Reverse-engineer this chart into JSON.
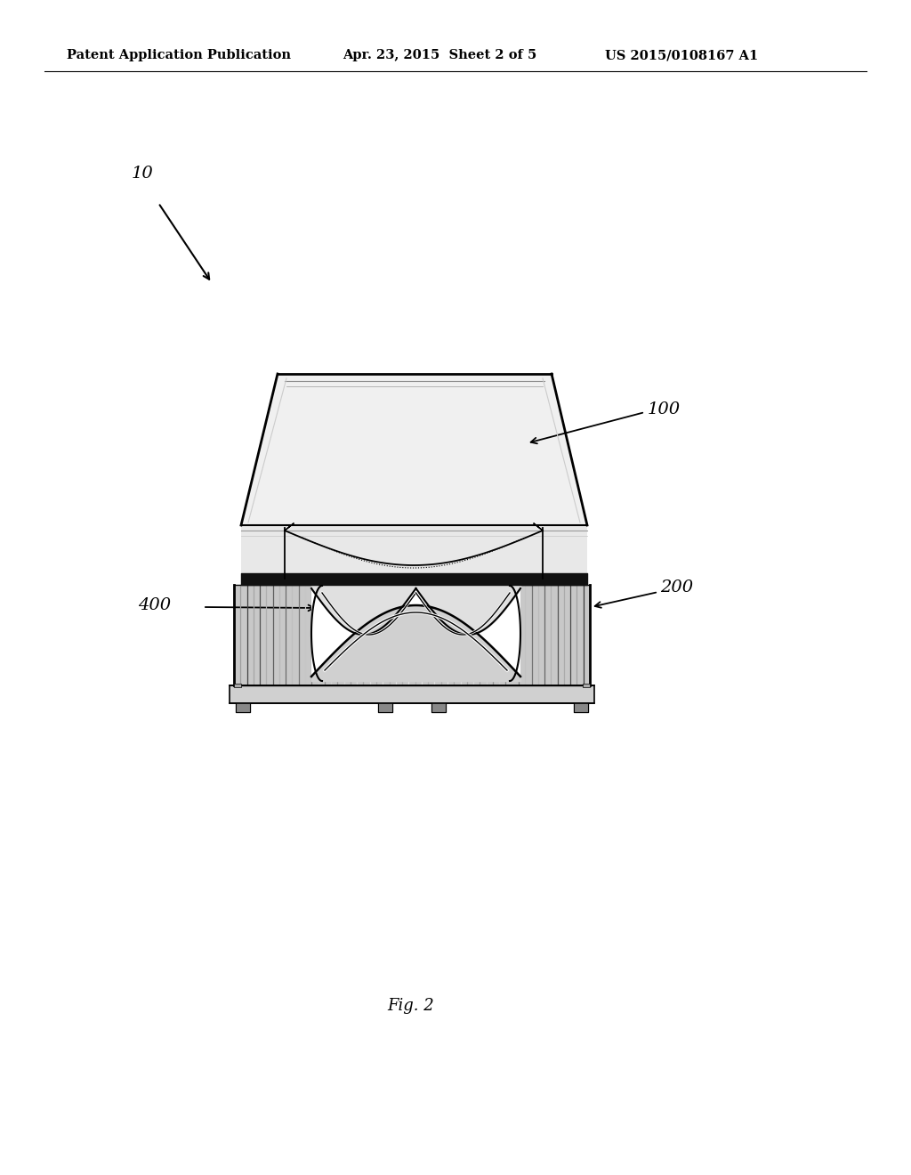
{
  "bg_color": "#ffffff",
  "title_left": "Patent Application Publication",
  "title_mid": "Apr. 23, 2015  Sheet 2 of 5",
  "title_right": "US 2015/0108167 A1",
  "fig_label": "Fig. 2",
  "label_10": "10",
  "label_100": "100",
  "label_200": "200",
  "label_400": "400"
}
